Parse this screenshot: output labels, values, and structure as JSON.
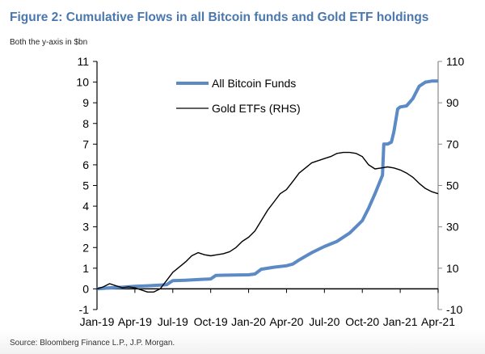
{
  "title": "Figure 2: Cumulative Flows in all Bitcoin funds and Gold ETF holdings",
  "subtitle": "Both the y-axis in $bn",
  "source": "Source: Bloomberg Finance L.P., J.P. Morgan.",
  "chart_data": {
    "type": "line",
    "title": "Figure 2: Cumulative Flows in all Bitcoin funds and Gold ETF holdings",
    "subtitle": "Both the y-axis in $bn",
    "xlabel": "",
    "ylabel": "$bn",
    "ylabel_right": "$bn",
    "x_ticks": [
      "Jan-19",
      "Apr-19",
      "Jul-19",
      "Oct-19",
      "Jan-20",
      "Apr-20",
      "Jul-20",
      "Oct-20",
      "Jan-21",
      "Apr-21"
    ],
    "xlim": [
      0,
      27
    ],
    "ylim": [
      -1,
      11
    ],
    "y_ticks": [
      -1,
      0,
      1,
      2,
      3,
      4,
      5,
      6,
      7,
      8,
      9,
      10,
      11
    ],
    "ylim_right": [
      -10,
      110
    ],
    "y_ticks_right": [
      -10,
      10,
      30,
      50,
      70,
      90,
      110
    ],
    "grid": false,
    "legend": "top-center",
    "colors": {
      "bitcoin": "#5b8ac4",
      "gold": "#000000",
      "title": "#4a77ad"
    },
    "series": [
      {
        "name": "All Bitcoin Funds",
        "axis": "left",
        "x": [
          0,
          1,
          2,
          3,
          4,
          5,
          5.5,
          6,
          7,
          8,
          9,
          9.4,
          10,
          11,
          12,
          12.5,
          13,
          14,
          15,
          15.5,
          16,
          17,
          18,
          19,
          20,
          20.5,
          21,
          21.5,
          22,
          22.6,
          22.7,
          23,
          23.3,
          23.5,
          23.8,
          24,
          24.5,
          25,
          25.5,
          26,
          26.5,
          27
        ],
        "values": [
          0,
          0.05,
          0.08,
          0.12,
          0.15,
          0.18,
          0.2,
          0.4,
          0.42,
          0.45,
          0.48,
          0.65,
          0.66,
          0.67,
          0.68,
          0.72,
          0.95,
          1.05,
          1.12,
          1.2,
          1.4,
          1.75,
          2.05,
          2.3,
          2.7,
          3.0,
          3.3,
          3.9,
          4.6,
          5.5,
          7.0,
          7.0,
          7.1,
          7.6,
          8.7,
          8.8,
          8.85,
          9.2,
          9.8,
          10.0,
          10.05,
          10.05
        ]
      },
      {
        "name": "Gold ETFs (RHS)",
        "axis": "right",
        "x": [
          0,
          0.5,
          1,
          1.5,
          2,
          2.5,
          3,
          3.5,
          4,
          4.5,
          5,
          5.5,
          6,
          6.5,
          7,
          7.5,
          8,
          8.5,
          9,
          9.5,
          10,
          10.5,
          11,
          11.5,
          12,
          12.5,
          13,
          13.5,
          14,
          14.5,
          15,
          15.5,
          16,
          16.5,
          17,
          17.5,
          18,
          18.5,
          19,
          19.5,
          20,
          20.5,
          21,
          21.5,
          22,
          22.5,
          23,
          23.5,
          24,
          24.5,
          25,
          25.5,
          26,
          26.5,
          27
        ],
        "values": [
          0,
          1,
          2.5,
          1.5,
          0.5,
          1,
          0.5,
          -0.5,
          -1.5,
          -1.5,
          0,
          4,
          8,
          10.5,
          13,
          16,
          17.5,
          16.5,
          16,
          16.5,
          17,
          18,
          20,
          23,
          25,
          28,
          33,
          38,
          42,
          46,
          48,
          52,
          56,
          58.5,
          61,
          62,
          63,
          64,
          65.5,
          66,
          66,
          65.5,
          64,
          60,
          58,
          58.5,
          59,
          58.5,
          57.5,
          56,
          54,
          51,
          48.5,
          47,
          46
        ]
      }
    ]
  },
  "legend": {
    "items": [
      {
        "label": "All Bitcoin Funds"
      },
      {
        "label": "Gold ETFs (RHS)"
      }
    ]
  }
}
